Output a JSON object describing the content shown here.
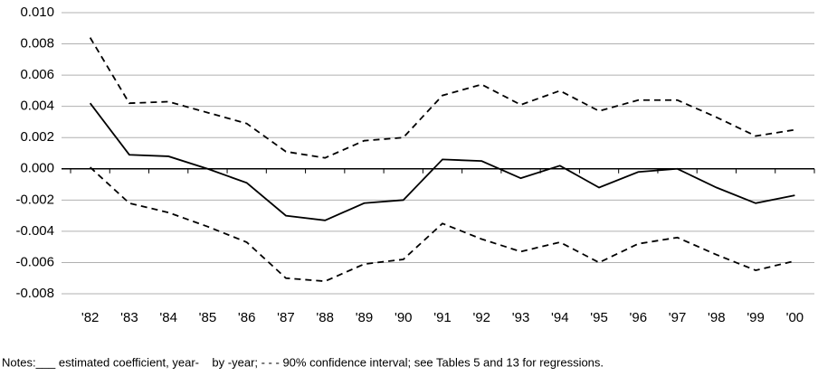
{
  "chart_data": {
    "type": "line",
    "categories": [
      "'82",
      "'83",
      "'84",
      "'85",
      "'86",
      "'87",
      "'88",
      "'89",
      "'90",
      "'91",
      "'92",
      "'93",
      "'94",
      "'95",
      "'96",
      "'97",
      "'98",
      "'99",
      "'00"
    ],
    "series": [
      {
        "color": "#000000",
        "line_style": "solid",
        "values": [
          0.0042,
          0.0009,
          0.0008,
          0.0,
          -0.0009,
          -0.003,
          -0.0033,
          -0.0022,
          -0.002,
          0.0006,
          0.0005,
          -0.0006,
          0.0002,
          -0.0012,
          -0.0002,
          0.0,
          -0.0012,
          -0.0022,
          -0.0017
        ]
      },
      {
        "color": "#000000",
        "line_style": "dashed",
        "values": [
          0.0084,
          0.0042,
          0.0043,
          0.0036,
          0.0029,
          0.0011,
          0.0007,
          0.0018,
          0.002,
          0.0047,
          0.0054,
          0.0041,
          0.005,
          0.0037,
          0.0044,
          0.0044,
          0.0033,
          0.0021,
          0.0025
        ]
      },
      {
        "color": "#000000",
        "line_style": "dashed",
        "values": [
          0.0001,
          -0.0022,
          -0.0028,
          -0.0037,
          -0.0047,
          -0.007,
          -0.0072,
          -0.0061,
          -0.0058,
          -0.0035,
          -0.0045,
          -0.0053,
          -0.0047,
          -0.006,
          -0.0048,
          -0.0044,
          -0.0055,
          -0.0065,
          -0.0059
        ]
      }
    ],
    "ylim": [
      -0.008,
      0.01
    ],
    "yticks": [
      {
        "value": -0.008,
        "label": "-0.008"
      },
      {
        "value": -0.006,
        "label": "-0.006"
      },
      {
        "value": -0.004,
        "label": "-0.004"
      },
      {
        "value": -0.002,
        "label": "-0.002"
      },
      {
        "value": 0,
        "label": "0.000"
      },
      {
        "value": 0.002,
        "label": "0.002"
      },
      {
        "value": 0.004,
        "label": "0.004"
      },
      {
        "value": 0.006,
        "label": "0.006"
      },
      {
        "value": 0.008,
        "label": "0.008"
      },
      {
        "value": 0.01,
        "label": "0.010"
      }
    ],
    "grid": true,
    "notes": "Notes:___ estimated coefficient, year-    by -year; - - - 90% confidence interval; see Tables 5 and 13 for regressions."
  }
}
